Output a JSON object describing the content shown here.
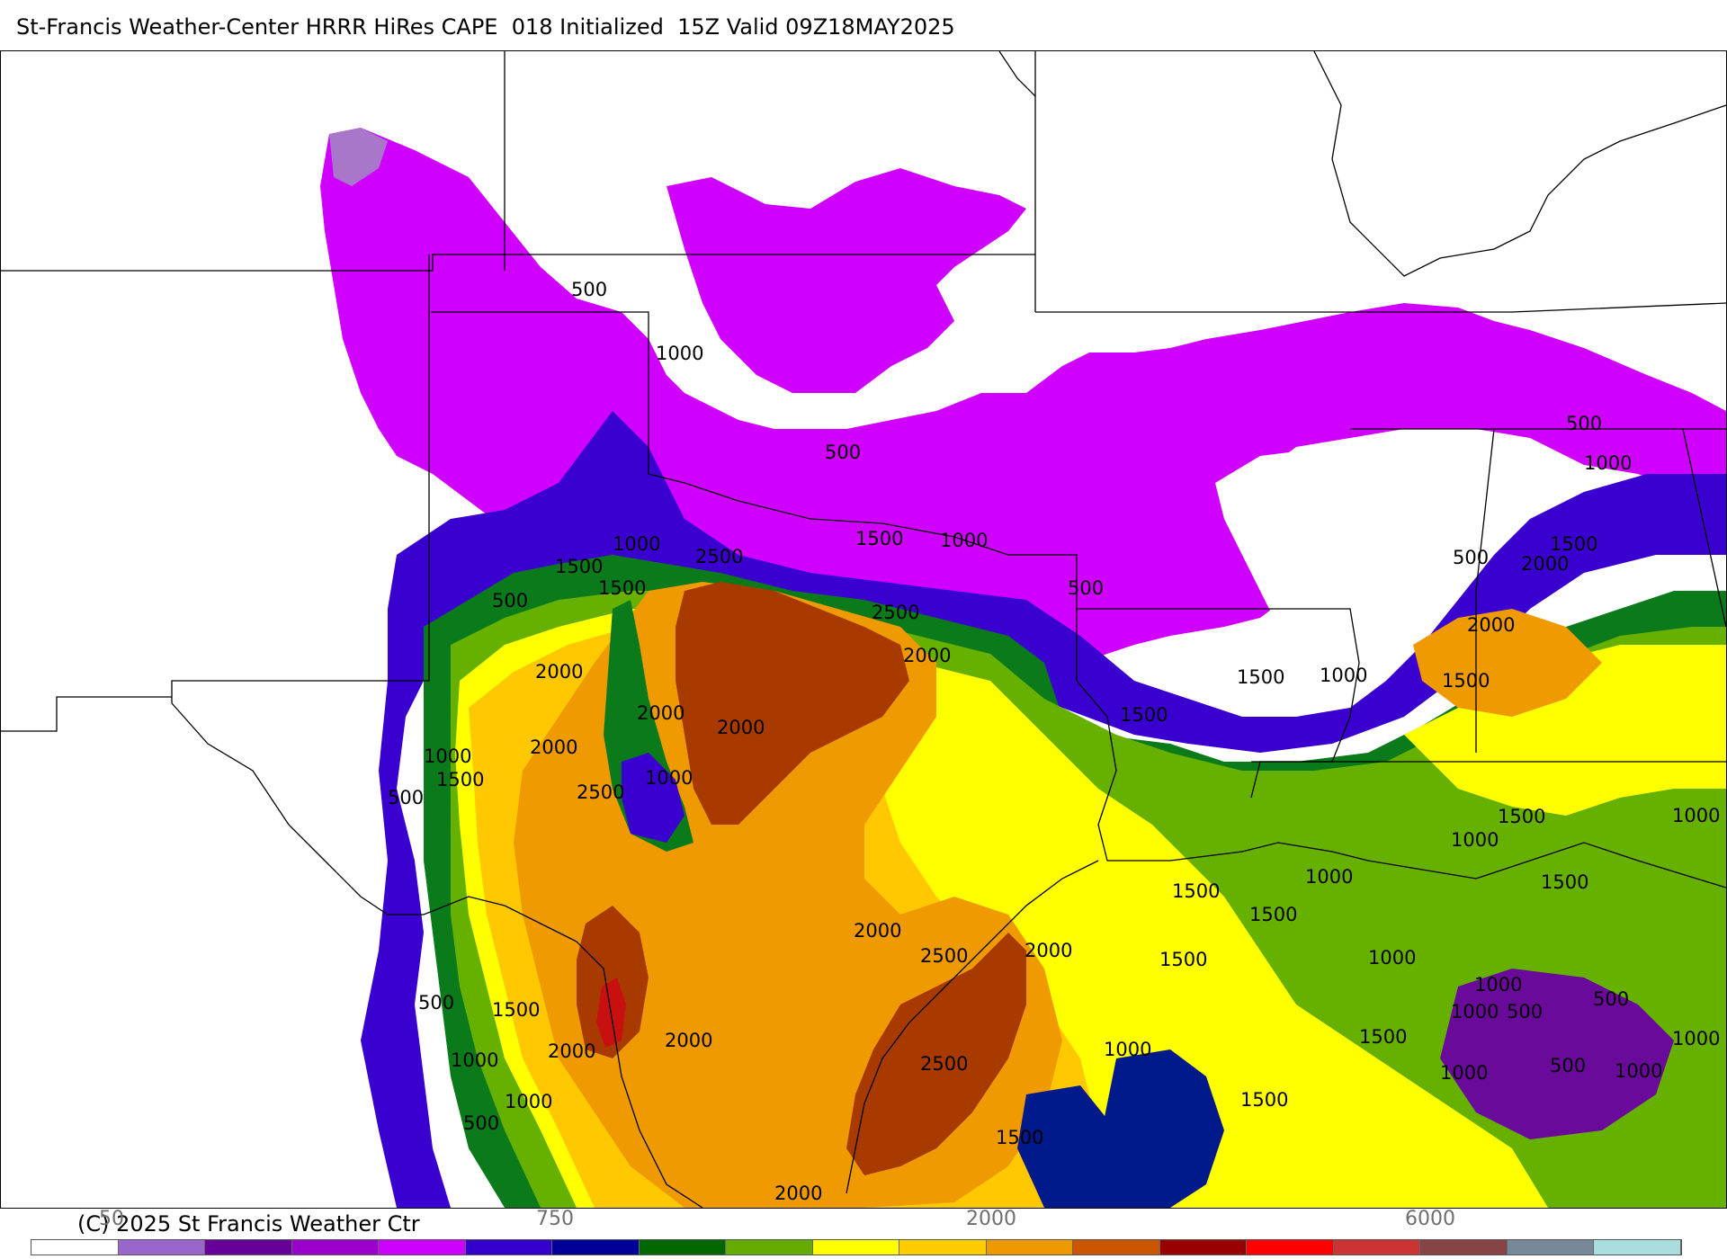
{
  "header": {
    "title": "St-Francis Weather-Center HRRR HiRes CAPE  018 Initialized  15Z Valid 09Z18MAY2025"
  },
  "footer": {
    "copyright": "(C) 2025 St Francis Weather Ctr"
  },
  "colorbar": {
    "colors": [
      "#ffffff",
      "#9966cc",
      "#660099",
      "#9900cc",
      "#cc00ff",
      "#3300cc",
      "#000099",
      "#006600",
      "#66aa00",
      "#ffff00",
      "#ffcc00",
      "#ee9900",
      "#cc5500",
      "#990000",
      "#ff0000",
      "#cc3333",
      "#884444",
      "#778899",
      "#aadddd"
    ],
    "tick_labels": [
      "50",
      "750",
      "2000",
      "6000"
    ]
  },
  "contour_labels": {
    "l500": "500",
    "l1000": "1000",
    "l1500": "1500",
    "l2000": "2000",
    "l2500": "2500"
  },
  "colors": {
    "purple_light": "#a977c9",
    "purple_dark": "#6a0a9a",
    "magenta": "#d000ff",
    "blue": "#3a00d0",
    "navy": "#001a8c",
    "green_dark": "#0a7a1a",
    "green_light": "#66b000",
    "yellow": "#ffff00",
    "gold": "#ffc800",
    "orange": "#ef9a00",
    "brown": "#a83a00",
    "red": "#c81010"
  }
}
